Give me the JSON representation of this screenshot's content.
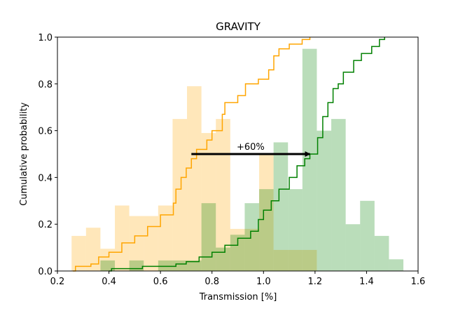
{
  "chart_data": {
    "type": "histogram",
    "title": "GRAVITY",
    "x_label": "Transmission [%]",
    "y_label": "Cumulative probability",
    "xlim": [
      0.2,
      1.6
    ],
    "ylim": [
      0,
      1
    ],
    "xticks": [
      0.2,
      0.4,
      0.6,
      0.8,
      {
        "value": 1,
        "label": "1.0"
      },
      1.2,
      1.4,
      1.6
    ],
    "yticks": [
      {
        "value": 0,
        "label": "0.0"
      },
      0.2,
      0.4,
      0.6,
      0.8,
      {
        "value": 1,
        "label": "1.0"
      }
    ],
    "histograms": [
      {
        "color": "#ffa500",
        "bins": [
          0.255,
          0.311,
          0.367,
          0.423,
          0.479,
          0.535,
          0.591,
          0.647,
          0.703,
          0.759,
          0.815,
          0.871,
          0.927,
          0.983,
          1.039,
          1.095,
          1.151,
          1.207
        ],
        "values": [
          0.15,
          0.185,
          0.095,
          0.28,
          0.235,
          0.235,
          0.28,
          0.65,
          0.79,
          0.59,
          0.65,
          0.18,
          0.18,
          0.5,
          0.09,
          0.09,
          0.09
        ]
      },
      {
        "color": "#008000",
        "bins": [
          0.367,
          0.423,
          0.479,
          0.535,
          0.591,
          0.647,
          0.703,
          0.759,
          0.815,
          0.871,
          0.927,
          0.983,
          1.039,
          1.095,
          1.151,
          1.207,
          1.263,
          1.319,
          1.375,
          1.431,
          1.487,
          1.543
        ],
        "values": [
          0.045,
          0,
          0.045,
          0,
          0.045,
          0.045,
          0.045,
          0.29,
          0.1,
          0.155,
          0.29,
          0.35,
          0.55,
          0.35,
          0.95,
          0.6,
          0.65,
          0.2,
          0.3,
          0.15,
          0.05
        ]
      }
    ],
    "lines": [
      {
        "color": "#ffa500",
        "x": [
          0.26,
          0.27,
          0.33,
          0.36,
          0.4,
          0.45,
          0.5,
          0.55,
          0.6,
          0.65,
          0.66,
          0.68,
          0.7,
          0.72,
          0.74,
          0.78,
          0.8,
          0.84,
          0.85,
          0.9,
          0.93,
          0.98,
          1.02,
          1.04,
          1.06,
          1.1,
          1.15,
          1.18
        ],
        "y": [
          0,
          0.02,
          0.03,
          0.06,
          0.08,
          0.12,
          0.15,
          0.19,
          0.24,
          0.29,
          0.35,
          0.4,
          0.44,
          0.48,
          0.52,
          0.56,
          0.6,
          0.67,
          0.72,
          0.75,
          0.8,
          0.82,
          0.86,
          0.92,
          0.95,
          0.97,
          0.99,
          1
        ]
      },
      {
        "color": "#008000",
        "x": [
          0.4,
          0.41,
          0.52,
          0.53,
          0.66,
          0.7,
          0.75,
          0.8,
          0.85,
          0.9,
          0.95,
          0.98,
          1.0,
          1.03,
          1.06,
          1.1,
          1.13,
          1.16,
          1.18,
          1.21,
          1.23,
          1.25,
          1.27,
          1.29,
          1.31,
          1.35,
          1.38,
          1.42,
          1.45,
          1.47
        ],
        "y": [
          0,
          0.01,
          0.01,
          0.02,
          0.03,
          0.04,
          0.06,
          0.08,
          0.11,
          0.14,
          0.17,
          0.22,
          0.26,
          0.3,
          0.35,
          0.4,
          0.45,
          0.48,
          0.5,
          0.57,
          0.66,
          0.72,
          0.78,
          0.8,
          0.85,
          0.9,
          0.93,
          0.96,
          0.99,
          1
        ]
      }
    ],
    "annotation": {
      "text": "+60%",
      "x0": 0.72,
      "x1": 1.18,
      "y": 0.5
    }
  }
}
